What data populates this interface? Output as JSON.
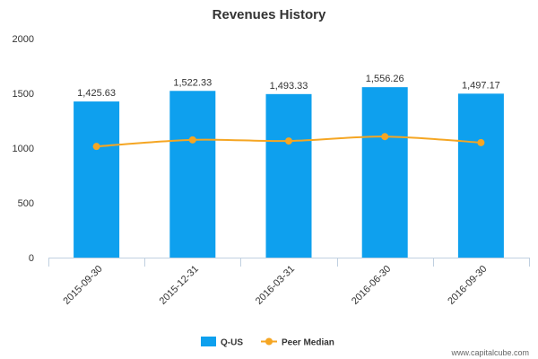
{
  "chart_data": {
    "type": "bar",
    "title": "Revenues History",
    "categories": [
      "2015-09-30",
      "2015-12-31",
      "2016-03-31",
      "2016-06-30",
      "2016-09-30"
    ],
    "series": [
      {
        "name": "Q-US",
        "type": "bar",
        "color": "#0ea0ee",
        "values": [
          1425.63,
          1522.33,
          1493.33,
          1556.26,
          1497.17
        ],
        "data_labels": [
          "1,425.63",
          "1,522.33",
          "1,493.33",
          "1,556.26",
          "1,497.17"
        ]
      },
      {
        "name": "Peer Median",
        "type": "line",
        "color": "#f5a623",
        "values": [
          1015,
          1075,
          1065,
          1105,
          1050
        ]
      }
    ],
    "ylim": [
      0,
      2000
    ],
    "yticks": [
      0,
      500,
      1000,
      1500,
      2000
    ],
    "legend": "bottom-center",
    "grid": false
  },
  "credit": "www.capitalcube.com"
}
